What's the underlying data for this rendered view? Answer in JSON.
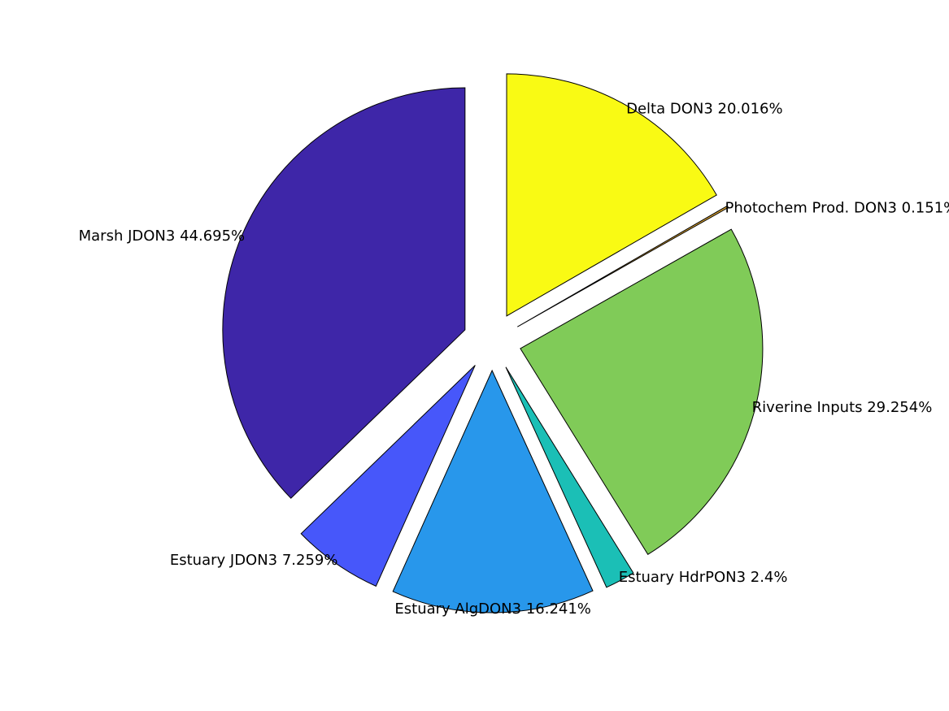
{
  "chart_data": {
    "type": "pie",
    "title": "",
    "exploded": true,
    "slices": [
      {
        "label": "Delta DON3 20.016%",
        "value": 20.016,
        "color": "#f9fa14"
      },
      {
        "label": "Photochem Prod. DON3 0.151%",
        "value": 0.151,
        "color": "#e0a732"
      },
      {
        "label": "Riverine Inputs 29.254%",
        "value": 29.254,
        "color": "#80cb58"
      },
      {
        "label": "Estuary HdrPON3 2.4%",
        "value": 2.4,
        "color": "#1bbfb6"
      },
      {
        "label": "Estuary AlgDON3 16.241%",
        "value": 16.241,
        "color": "#2897eb"
      },
      {
        "label": "Estuary JDON3 7.259%",
        "value": 7.259,
        "color": "#4757fa"
      },
      {
        "label": "Marsh JDON3 44.695%",
        "value": 44.695,
        "color": "#3e26a8"
      }
    ]
  }
}
